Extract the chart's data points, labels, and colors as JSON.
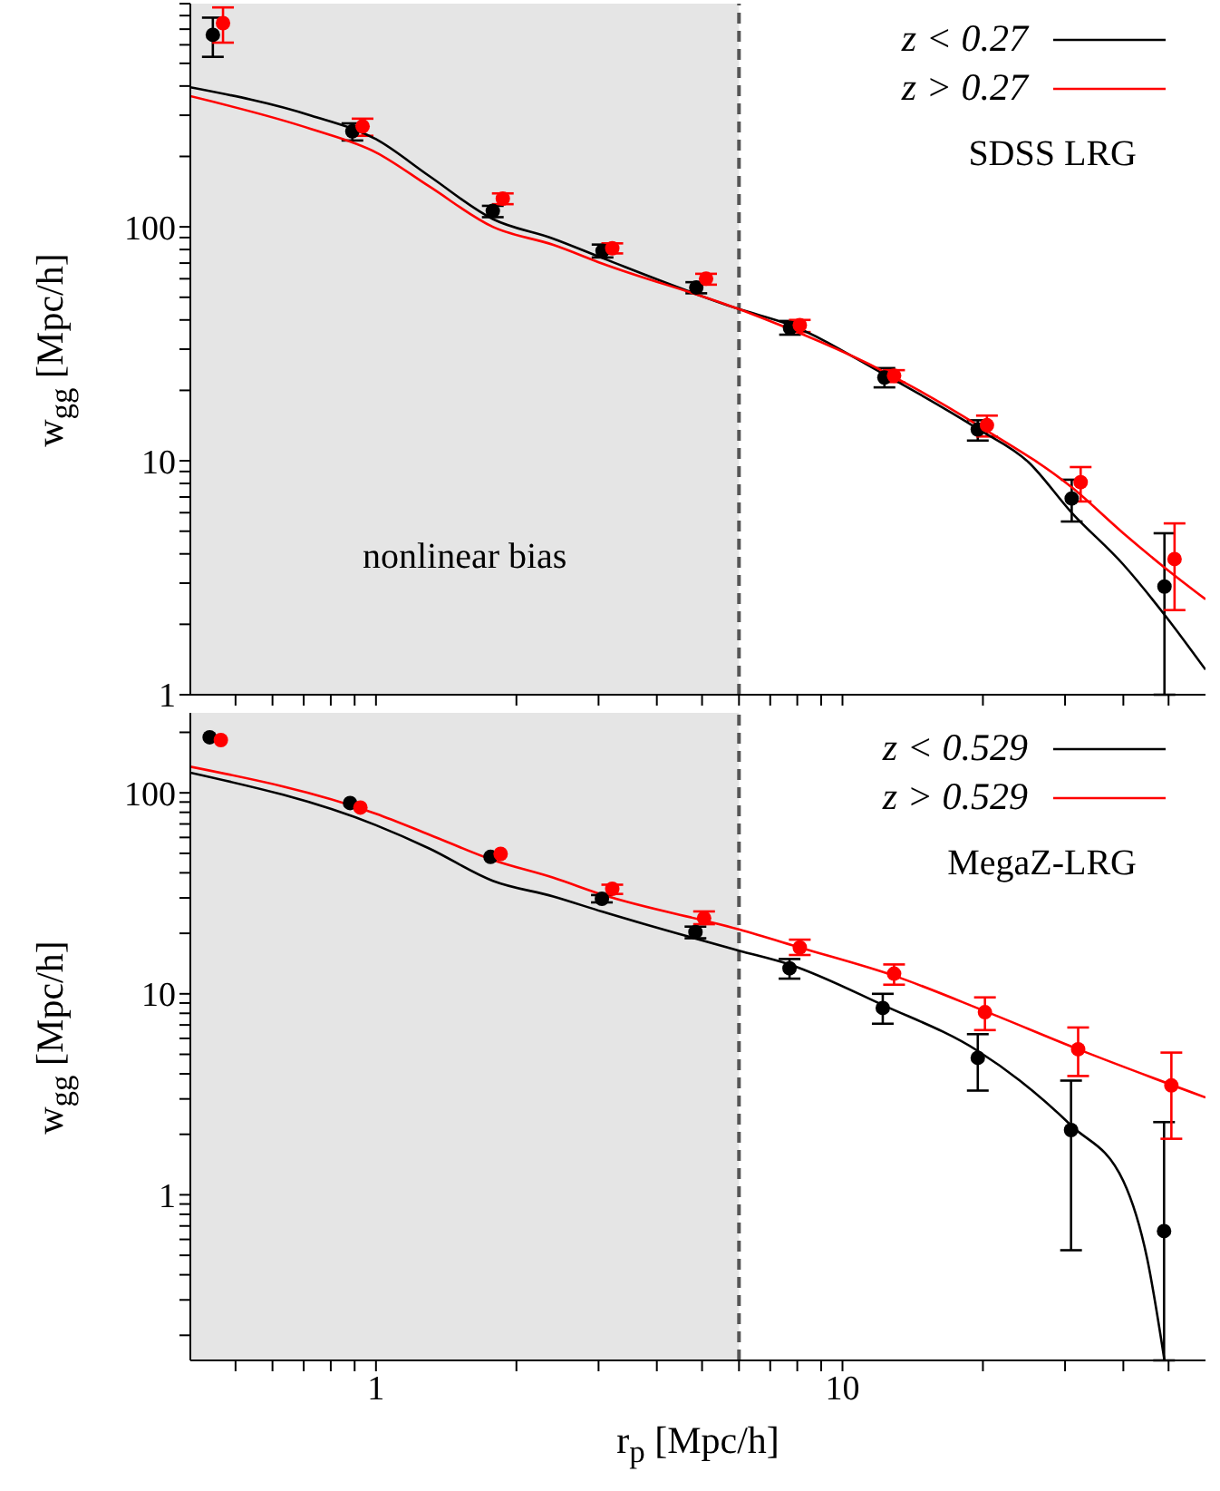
{
  "chart_data": [
    {
      "type": "scatter",
      "ylabel": "w$_{gg}$ [Mpc/h]",
      "log": "xy",
      "legend": "top right",
      "marker": "circle",
      "tick_labels": "y",
      "xlim": [
        0.4,
        60
      ],
      "xticks": [
        {
          "value": 0.5,
          "label": null
        },
        {
          "value": 0.6,
          "label": null
        },
        {
          "value": 0.7,
          "label": null
        },
        {
          "value": 0.8,
          "label": null
        },
        {
          "value": 0.9,
          "label": null
        },
        {
          "value": 1,
          "label": null
        },
        {
          "value": 2,
          "label": null
        },
        {
          "value": 3,
          "label": null
        },
        {
          "value": 4,
          "label": null
        },
        {
          "value": 5,
          "label": null
        },
        {
          "value": 6,
          "label": null
        },
        {
          "value": 7,
          "label": null
        },
        {
          "value": 8,
          "label": null
        },
        {
          "value": 9,
          "label": null
        },
        {
          "value": 10,
          "label": null
        },
        {
          "value": 20,
          "label": null
        },
        {
          "value": 30,
          "label": null
        },
        {
          "value": 40,
          "label": null
        },
        {
          "value": 50,
          "label": null
        }
      ],
      "ylim": [
        1,
        900
      ],
      "yticks": [
        1,
        {
          "value": 2,
          "label": null
        },
        {
          "value": 3,
          "label": null
        },
        {
          "value": 4,
          "label": null
        },
        {
          "value": 5,
          "label": null
        },
        {
          "value": 6,
          "label": null
        },
        {
          "value": 7,
          "label": null
        },
        {
          "value": 8,
          "label": null
        },
        {
          "value": 9,
          "label": null
        },
        10,
        {
          "value": 20,
          "label": null
        },
        {
          "value": 30,
          "label": null
        },
        {
          "value": 40,
          "label": null
        },
        {
          "value": 50,
          "label": null
        },
        {
          "value": 60,
          "label": null
        },
        {
          "value": 70,
          "label": null
        },
        {
          "value": 80,
          "label": null
        },
        {
          "value": 90,
          "label": null
        },
        100,
        {
          "value": 200,
          "label": null
        },
        {
          "value": 300,
          "label": null
        },
        {
          "value": 400,
          "label": null
        },
        {
          "value": 500,
          "label": null
        },
        {
          "value": 600,
          "label": null
        },
        {
          "value": 700,
          "label": null
        },
        {
          "value": 800,
          "label": null
        },
        {
          "value": 900,
          "label": null
        }
      ],
      "bands": [
        {
          "axis": "x",
          "from": 0.4,
          "to": 6,
          "label": "nonlinear bias",
          "color": "#e5e5e5"
        }
      ],
      "ref_lines": [
        {
          "axis": "x",
          "value": 6,
          "color": "#555555",
          "line_style": "dashed"
        }
      ],
      "annotations": [
        "SDSS LRG"
      ],
      "series": [
        {
          "color": "#000000",
          "x": [
            0.447,
            0.89,
            1.78,
            3.06,
            4.86,
            7.72,
            12.3,
            19.5,
            31,
            49
          ],
          "values": [
            662,
            256,
            117,
            79,
            55,
            37,
            22.7,
            13.6,
            6.9,
            2.9
          ],
          "errors": [
            [
              533,
              784
            ],
            [
              234,
              277
            ],
            [
              110,
              123
            ],
            [
              74,
              84
            ],
            [
              52,
              58
            ],
            [
              34.6,
              39.6
            ],
            [
              20.6,
              24.9
            ],
            [
              12.2,
              14.9
            ],
            [
              5.5,
              8.3
            ],
            [
              1,
              4.9
            ]
          ]
        },
        {
          "color": "#ff0000",
          "x": [
            0.47,
            0.936,
            1.87,
            3.21,
            5.1,
            8.1,
            12.9,
            20.4,
            32.4,
            51.5
          ],
          "values": [
            743,
            269,
            132,
            81,
            60,
            38,
            23.1,
            14.2,
            8.1,
            3.8
          ],
          "errors": [
            [
              613,
              867
            ],
            [
              245,
              290
            ],
            [
              125,
              139
            ],
            [
              77,
              85
            ],
            [
              56.6,
              63
            ],
            [
              35.5,
              40
            ],
            [
              21.7,
              24.4
            ],
            [
              12.7,
              15.6
            ],
            [
              6.7,
              9.4
            ],
            [
              2.3,
              5.4
            ]
          ]
        },
        {
          "type": "line",
          "name": "z < 0.27",
          "marker": "none",
          "color": "#000000",
          "x": [
            0.4,
            0.726,
            1,
            1.3,
            1.78,
            2.4,
            3.06,
            6,
            7.72,
            12.2,
            19.5,
            25,
            31,
            40,
            49,
            60
          ],
          "values": [
            395,
            299,
            237,
            165,
            108,
            89,
            73.5,
            44.5,
            38.1,
            23.6,
            13.7,
            9.9,
            6,
            3.6,
            2.2,
            1.28
          ]
        },
        {
          "type": "line",
          "name": "z > 0.27",
          "marker": "none",
          "color": "#ff0000",
          "x": [
            0.4,
            0.726,
            1,
            1.3,
            1.78,
            2.4,
            3.06,
            6,
            12.2,
            19.5,
            31,
            40,
            49,
            60
          ],
          "values": [
            362,
            262,
            208,
            149,
            100,
            83.7,
            69.6,
            44.5,
            24.2,
            14.2,
            7.7,
            4.9,
            3.5,
            2.56
          ]
        }
      ]
    },
    {
      "type": "scatter",
      "xlabel": "r$_{p}$ [Mpc/h]",
      "ylabel": "w$_{gg}$ [Mpc/h]",
      "log": "xy",
      "legend": "top right",
      "marker": "circle",
      "xlim": [
        0.4,
        60
      ],
      "xticks": [
        {
          "value": 0.5,
          "label": null
        },
        {
          "value": 0.6,
          "label": null
        },
        {
          "value": 0.7,
          "label": null
        },
        {
          "value": 0.8,
          "label": null
        },
        {
          "value": 0.9,
          "label": null
        },
        1,
        {
          "value": 2,
          "label": null
        },
        {
          "value": 3,
          "label": null
        },
        {
          "value": 4,
          "label": null
        },
        {
          "value": 5,
          "label": null
        },
        {
          "value": 6,
          "label": null
        },
        {
          "value": 7,
          "label": null
        },
        {
          "value": 8,
          "label": null
        },
        {
          "value": 9,
          "label": null
        },
        10,
        {
          "value": 20,
          "label": null
        },
        {
          "value": 30,
          "label": null
        },
        {
          "value": 40,
          "label": null
        },
        {
          "value": 50,
          "label": null
        }
      ],
      "ylim": [
        0.15,
        250
      ],
      "yticks": [
        {
          "value": 0.2,
          "label": null
        },
        {
          "value": 0.3,
          "label": null
        },
        {
          "value": 0.4,
          "label": null
        },
        {
          "value": 0.5,
          "label": null
        },
        {
          "value": 0.6,
          "label": null
        },
        {
          "value": 0.7,
          "label": null
        },
        {
          "value": 0.8,
          "label": null
        },
        {
          "value": 0.9,
          "label": null
        },
        1,
        {
          "value": 2,
          "label": null
        },
        {
          "value": 3,
          "label": null
        },
        {
          "value": 4,
          "label": null
        },
        {
          "value": 5,
          "label": null
        },
        {
          "value": 6,
          "label": null
        },
        {
          "value": 7,
          "label": null
        },
        {
          "value": 8,
          "label": null
        },
        {
          "value": 9,
          "label": null
        },
        10,
        {
          "value": 20,
          "label": null
        },
        {
          "value": 30,
          "label": null
        },
        {
          "value": 40,
          "label": null
        },
        {
          "value": 50,
          "label": null
        },
        {
          "value": 60,
          "label": null
        },
        {
          "value": 70,
          "label": null
        },
        {
          "value": 80,
          "label": null
        },
        {
          "value": 90,
          "label": null
        },
        100,
        {
          "value": 200,
          "label": null
        }
      ],
      "bands": [
        {
          "axis": "x",
          "from": 0.4,
          "to": 6,
          "color": "#e5e5e5"
        }
      ],
      "ref_lines": [
        {
          "axis": "x",
          "value": 6,
          "color": "#555555",
          "line_style": "dashed"
        }
      ],
      "annotations": [
        "MegaZ-LRG"
      ],
      "series": [
        {
          "color": "#000000",
          "x": [
            0.44,
            0.88,
            1.76,
            3.05,
            4.84,
            7.7,
            12.2,
            19.5,
            30.9,
            48.9
          ],
          "values": [
            189,
            89,
            48,
            29.7,
            20.3,
            13.4,
            8.5,
            4.8,
            2.1,
            0.66
          ],
          "errors": [
            null,
            null,
            null,
            [
              28.5,
              31
            ],
            [
              18.9,
              21.6
            ],
            [
              11.9,
              14.9
            ],
            [
              7.1,
              10
            ],
            [
              3.3,
              6.3
            ],
            [
              0.53,
              3.7
            ],
            [
              0.15,
              2.3
            ]
          ]
        },
        {
          "color": "#ff0000",
          "x": [
            0.465,
            0.926,
            1.85,
            3.21,
            5.05,
            8.1,
            12.9,
            20.2,
            32,
            50.7
          ],
          "values": [
            183,
            84.5,
            49.7,
            33.3,
            23.8,
            17,
            12.6,
            8.1,
            5.3,
            3.5
          ],
          "errors": [
            null,
            null,
            null,
            [
              31.4,
              34.9
            ],
            [
              22.2,
              25.7
            ],
            [
              15.6,
              18.6
            ],
            [
              11.1,
              14
            ],
            [
              6.6,
              9.6
            ],
            [
              3.9,
              6.8
            ],
            [
              1.9,
              5.1
            ]
          ]
        },
        {
          "type": "line",
          "name": "z < 0.529",
          "marker": "none",
          "color": "#000000",
          "x": [
            0.4,
            1,
            1.3,
            1.78,
            2.4,
            3.06,
            6,
            7.7,
            12.2,
            19.5,
            24,
            31,
            40,
            45,
            49
          ],
          "values": [
            126,
            69,
            52.9,
            36.5,
            30.5,
            25.6,
            16.4,
            14,
            8.8,
            5.2,
            3.7,
            2.2,
            1.17,
            0.48,
            0.15
          ]
        },
        {
          "type": "line",
          "name": "z > 0.529",
          "marker": "none",
          "color": "#ff0000",
          "x": [
            0.4,
            1,
            1.3,
            1.78,
            2.4,
            3.06,
            6,
            8.1,
            12.9,
            20.2,
            32,
            60
          ],
          "values": [
            135,
            78.7,
            62,
            46.3,
            37.8,
            31.1,
            20.9,
            17,
            12.3,
            8.2,
            5.3,
            3.05
          ]
        }
      ]
    }
  ]
}
